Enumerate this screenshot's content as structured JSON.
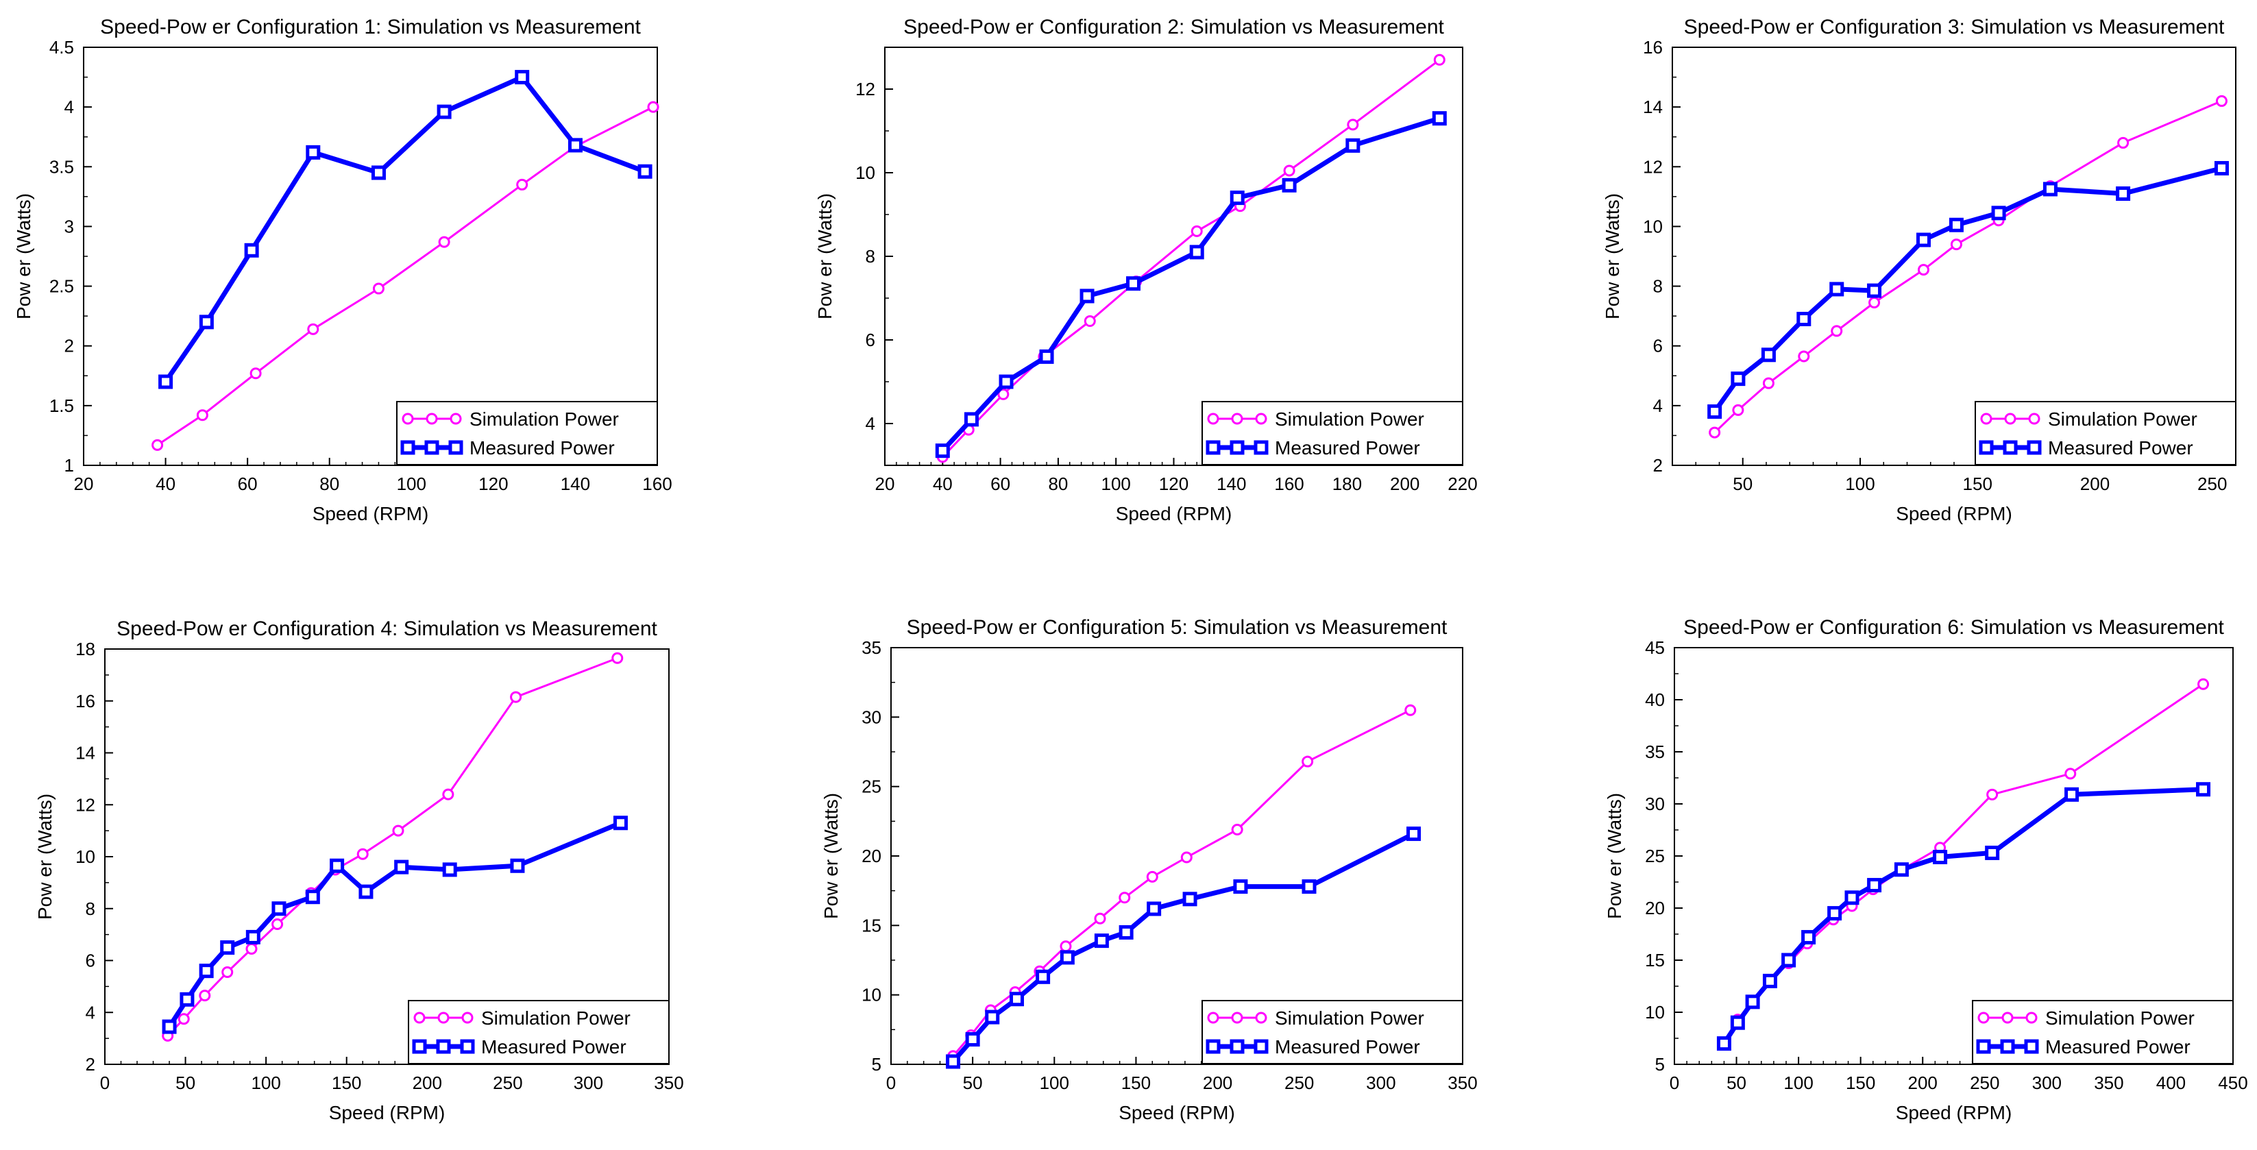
{
  "colors": {
    "simulation": "#ff00ff",
    "measured": "#0000ff",
    "axes": "#000000",
    "background": "#ffffff"
  },
  "chart_data": [
    {
      "type": "line",
      "title": "Speed-Pow er Configuration 1: Simulation vs Measurement",
      "xlabel": "Speed (RPM)",
      "ylabel": "Pow er (Watts)",
      "xlim": [
        20,
        160
      ],
      "ylim": [
        1,
        4.5
      ],
      "xticks": [
        20,
        40,
        60,
        80,
        100,
        120,
        140,
        160
      ],
      "yticks": [
        1,
        1.5,
        2,
        2.5,
        3,
        3.5,
        4,
        4.5
      ],
      "xtick_labels": [
        "20",
        "40",
        "60",
        "80",
        "100",
        "120",
        "140",
        "160"
      ],
      "ytick_labels": [
        "1",
        "1.5",
        "2",
        "2.5",
        "3",
        "3.5",
        "4",
        "4.5"
      ],
      "legend_position": "bottom-right",
      "series": [
        {
          "name": "Simulation Power",
          "x": [
            38,
            49,
            62,
            76,
            92,
            108,
            127,
            140,
            159
          ],
          "y": [
            1.17,
            1.42,
            1.77,
            2.14,
            2.48,
            2.87,
            3.35,
            3.67,
            4.0
          ]
        },
        {
          "name": "Measured Power",
          "x": [
            40,
            50,
            61,
            76,
            92,
            108,
            127,
            140,
            157
          ],
          "y": [
            1.7,
            2.2,
            2.8,
            3.62,
            3.45,
            3.96,
            4.25,
            3.68,
            3.46
          ]
        }
      ]
    },
    {
      "type": "line",
      "title": "Speed-Pow er Configuration 2: Simulation vs Measurement",
      "xlabel": "Speed (RPM)",
      "ylabel": "Pow er (Watts)",
      "xlim": [
        20,
        220
      ],
      "ylim": [
        3,
        13
      ],
      "xticks": [
        20,
        40,
        60,
        80,
        100,
        120,
        140,
        160,
        180,
        200,
        220
      ],
      "yticks": [
        4,
        6,
        8,
        10,
        12
      ],
      "xtick_labels": [
        "20",
        "40",
        "60",
        "80",
        "100",
        "120",
        "140",
        "160",
        "180",
        "200",
        "220"
      ],
      "ytick_labels": [
        "4",
        "6",
        "8",
        "10",
        "12"
      ],
      "legend_position": "bottom-right",
      "series": [
        {
          "name": "Simulation Power",
          "x": [
            40,
            49,
            61,
            75,
            91,
            107,
            128,
            143,
            160,
            182,
            212
          ],
          "y": [
            3.2,
            3.85,
            4.7,
            5.6,
            6.45,
            7.4,
            8.6,
            9.2,
            10.05,
            11.15,
            12.7
          ]
        },
        {
          "name": "Measured Power",
          "x": [
            40,
            50,
            62,
            76,
            90,
            106,
            128,
            142,
            160,
            182,
            212
          ],
          "y": [
            3.35,
            4.1,
            5.0,
            5.6,
            7.05,
            7.35,
            8.1,
            9.4,
            9.7,
            10.65,
            11.3
          ]
        }
      ]
    },
    {
      "type": "line",
      "title": "Speed-Pow er Configuration 3: Simulation vs Measurement",
      "xlabel": "Speed (RPM)",
      "ylabel": "Pow er (Watts)",
      "xlim": [
        20,
        260
      ],
      "ylim": [
        2,
        16
      ],
      "xticks": [
        50,
        100,
        150,
        200,
        250
      ],
      "yticks": [
        2,
        4,
        6,
        8,
        10,
        12,
        14,
        16
      ],
      "xtick_labels": [
        "50",
        "100",
        "150",
        "200",
        "250"
      ],
      "ytick_labels": [
        "2",
        "4",
        "6",
        "8",
        "10",
        "12",
        "14",
        "16"
      ],
      "legend_position": "bottom-right",
      "series": [
        {
          "name": "Simulation Power",
          "x": [
            38,
            48,
            61,
            76,
            90,
            106,
            127,
            141,
            159,
            181,
            212,
            254
          ],
          "y": [
            3.1,
            3.85,
            4.75,
            5.65,
            6.5,
            7.45,
            8.55,
            9.4,
            10.2,
            11.35,
            12.8,
            14.2
          ]
        },
        {
          "name": "Measured Power",
          "x": [
            38,
            48,
            61,
            76,
            90,
            106,
            127,
            141,
            159,
            181,
            212,
            254
          ],
          "y": [
            3.8,
            4.9,
            5.7,
            6.9,
            7.9,
            7.85,
            9.55,
            10.05,
            10.45,
            11.25,
            11.1,
            11.95
          ]
        }
      ]
    },
    {
      "type": "line",
      "title": "Speed-Pow er Configuration 4: Simulation vs Measurement",
      "xlabel": "Speed (RPM)",
      "ylabel": "Pow er (Watts)",
      "xlim": [
        0,
        350
      ],
      "ylim": [
        2,
        18
      ],
      "xticks": [
        0,
        50,
        100,
        150,
        200,
        250,
        300,
        350
      ],
      "yticks": [
        2,
        4,
        6,
        8,
        10,
        12,
        14,
        16,
        18
      ],
      "xtick_labels": [
        "0",
        "50",
        "100",
        "150",
        "200",
        "250",
        "300",
        "350"
      ],
      "ytick_labels": [
        "2",
        "4",
        "6",
        "8",
        "10",
        "12",
        "14",
        "16",
        "18"
      ],
      "legend_position": "bottom-right",
      "series": [
        {
          "name": "Simulation Power",
          "x": [
            39,
            49,
            62,
            76,
            91,
            107,
            128,
            143,
            160,
            182,
            213,
            255,
            318
          ],
          "y": [
            3.1,
            3.75,
            4.65,
            5.55,
            6.45,
            7.4,
            8.6,
            9.5,
            10.1,
            11.0,
            12.4,
            16.15,
            17.65
          ]
        },
        {
          "name": "Measured Power",
          "x": [
            40,
            51,
            63,
            76,
            92,
            108,
            129,
            144,
            162,
            184,
            214,
            256,
            320
          ],
          "y": [
            3.45,
            4.5,
            5.6,
            6.5,
            6.9,
            8.0,
            8.45,
            9.65,
            8.65,
            9.6,
            9.5,
            9.65,
            11.3
          ]
        }
      ]
    },
    {
      "type": "line",
      "title": "Speed-Pow er Configuration 5: Simulation vs Measurement",
      "xlabel": "Speed (RPM)",
      "ylabel": "Pow er (Watts)",
      "xlim": [
        0,
        350
      ],
      "ylim": [
        5,
        35
      ],
      "xticks": [
        0,
        50,
        100,
        150,
        200,
        250,
        300,
        350
      ],
      "yticks": [
        5,
        10,
        15,
        20,
        25,
        30,
        35
      ],
      "xtick_labels": [
        "0",
        "50",
        "100",
        "150",
        "200",
        "250",
        "300",
        "350"
      ],
      "ytick_labels": [
        "5",
        "10",
        "15",
        "20",
        "25",
        "30",
        "35"
      ],
      "legend_position": "bottom-right",
      "series": [
        {
          "name": "Simulation Power",
          "x": [
            38,
            49,
            61,
            76,
            91,
            107,
            128,
            143,
            160,
            181,
            212,
            255,
            318
          ],
          "y": [
            5.6,
            7.1,
            8.9,
            10.2,
            11.7,
            13.5,
            15.5,
            17.0,
            18.5,
            19.9,
            21.9,
            26.8,
            30.5
          ]
        },
        {
          "name": "Measured Power",
          "x": [
            38,
            50,
            62,
            77,
            93,
            108,
            129,
            144,
            161,
            183,
            214,
            256,
            320
          ],
          "y": [
            5.2,
            6.8,
            8.4,
            9.7,
            11.3,
            12.7,
            13.9,
            14.5,
            16.2,
            16.9,
            17.8,
            17.8,
            21.6
          ]
        }
      ]
    },
    {
      "type": "line",
      "title": "Speed-Pow er Configuration 6: Simulation vs Measurement",
      "xlabel": "Speed (RPM)",
      "ylabel": "Pow er (Watts)",
      "xlim": [
        0,
        450
      ],
      "ylim": [
        5,
        45
      ],
      "xticks": [
        0,
        50,
        100,
        150,
        200,
        250,
        300,
        350,
        400,
        450
      ],
      "yticks": [
        5,
        10,
        15,
        20,
        25,
        30,
        35,
        40,
        45
      ],
      "xtick_labels": [
        "0",
        "50",
        "100",
        "150",
        "200",
        "250",
        "300",
        "350",
        "400",
        "450"
      ],
      "ytick_labels": [
        "5",
        "10",
        "15",
        "20",
        "25",
        "30",
        "35",
        "40",
        "45"
      ],
      "legend_position": "bottom-right",
      "series": [
        {
          "name": "Simulation Power",
          "x": [
            40,
            51,
            63,
            77,
            92,
            107,
            128,
            143,
            160,
            182,
            214,
            256,
            319,
            426
          ],
          "y": [
            7.0,
            9.3,
            11.1,
            13.0,
            14.7,
            16.6,
            18.9,
            20.2,
            21.8,
            23.6,
            25.8,
            30.9,
            32.9,
            41.5
          ]
        },
        {
          "name": "Measured Power",
          "x": [
            40,
            51,
            63,
            77,
            92,
            108,
            129,
            143,
            161,
            183,
            214,
            256,
            320,
            426
          ],
          "y": [
            7.0,
            9.0,
            11.0,
            13.0,
            15.0,
            17.2,
            19.5,
            21.0,
            22.2,
            23.7,
            24.9,
            25.3,
            30.9,
            31.4
          ]
        }
      ]
    }
  ]
}
